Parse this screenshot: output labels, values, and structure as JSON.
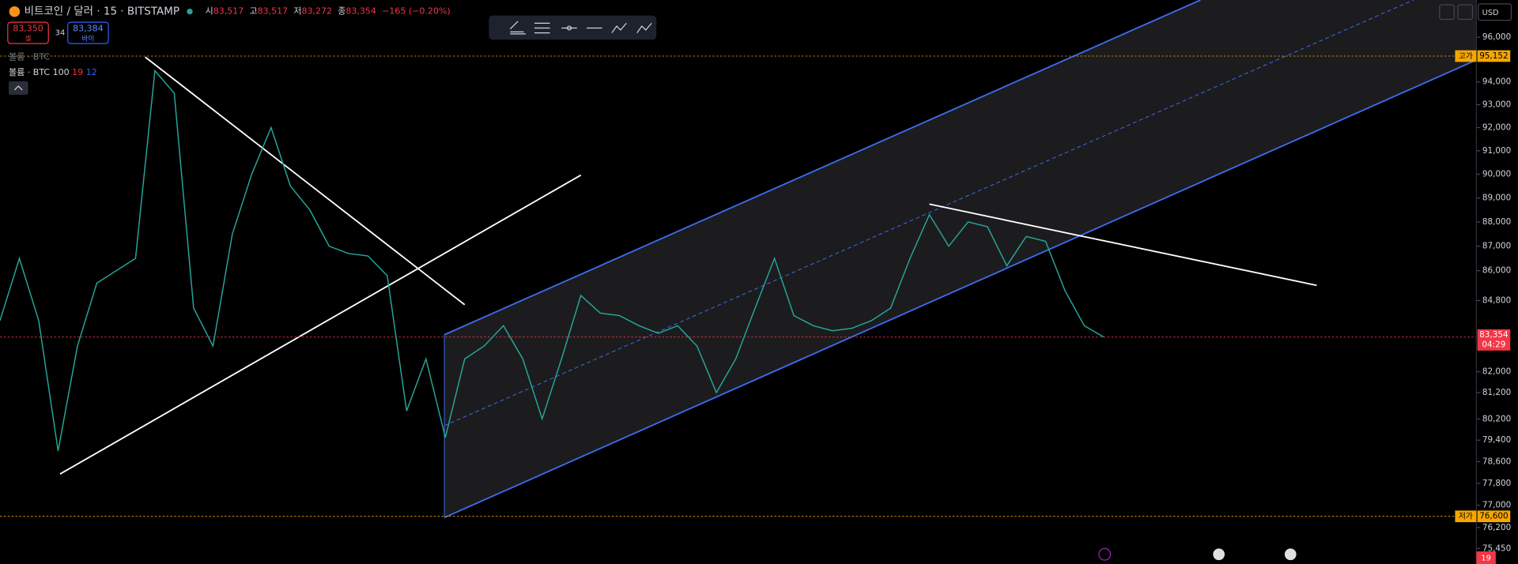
{
  "header": {
    "symbol": "비트코인 / 달러 · 15 · BITSTAMP",
    "ohlc": [
      {
        "label": "시",
        "value": "83,517"
      },
      {
        "label": "고",
        "value": "83,517"
      },
      {
        "label": "저",
        "value": "83,272"
      },
      {
        "label": "종",
        "value": "83,354"
      }
    ],
    "change": "−165 (−0.20%)"
  },
  "sell": {
    "price": "83,350",
    "label": "셀"
  },
  "spread": "34",
  "buy": {
    "price": "83,384",
    "label": "바이"
  },
  "indicators": [
    "볼륨 · BTC",
    "볼륨 · BTC 100"
  ],
  "volume_params": [
    "19",
    "12"
  ],
  "currency": "USD",
  "volume_badge": "19",
  "chart": {
    "type": "line",
    "log_scale": true,
    "color": "#26a69a",
    "ylim": [
      74900,
      97700
    ],
    "yticks": [
      {
        "value": 96000,
        "label": "96,000"
      },
      {
        "value": 94000,
        "label": "94,000"
      },
      {
        "value": 93000,
        "label": "93,000"
      },
      {
        "value": 92000,
        "label": "92,000"
      },
      {
        "value": 91000,
        "label": "91,000"
      },
      {
        "value": 90000,
        "label": "90,000"
      },
      {
        "value": 89000,
        "label": "89,000"
      },
      {
        "value": 88000,
        "label": "88,000"
      },
      {
        "value": 87000,
        "label": "87,000"
      },
      {
        "value": 86000,
        "label": "86,000"
      },
      {
        "value": 84800,
        "label": "84,800"
      },
      {
        "value": 82000,
        "label": "82,000"
      },
      {
        "value": 81200,
        "label": "81,200"
      },
      {
        "value": 80200,
        "label": "80,200"
      },
      {
        "value": 79400,
        "label": "79,400"
      },
      {
        "value": 78600,
        "label": "78,600"
      },
      {
        "value": 77800,
        "label": "77,800"
      },
      {
        "value": 77000,
        "label": "77,000"
      },
      {
        "value": 76200,
        "label": "76,200"
      },
      {
        "value": 75450,
        "label": "75,450"
      }
    ],
    "values": [
      84000,
      86500,
      84000,
      79000,
      83000,
      85500,
      86000,
      86500,
      94500,
      93500,
      84500,
      83000,
      87500,
      90000,
      92000,
      89500,
      88500,
      87000,
      86700,
      86600,
      85800,
      80500,
      82500,
      79500,
      82500,
      83000,
      83800,
      82500,
      80200,
      82500,
      85000,
      84300,
      84200,
      83800,
      83500,
      83800,
      83000,
      81200,
      82500,
      84500,
      86500,
      84200,
      83800,
      83600,
      83700,
      84000,
      84500,
      86500,
      88300,
      87000,
      88000,
      87800,
      86200,
      87400,
      87200,
      85200,
      83800,
      83354
    ],
    "high": {
      "label": "고가",
      "value": 95152,
      "text": "95,152"
    },
    "low": {
      "label": "저가",
      "value": 76600,
      "text": "76,600"
    },
    "last": {
      "value": 83354,
      "text": "83,354",
      "countdown": "04:29"
    }
  }
}
